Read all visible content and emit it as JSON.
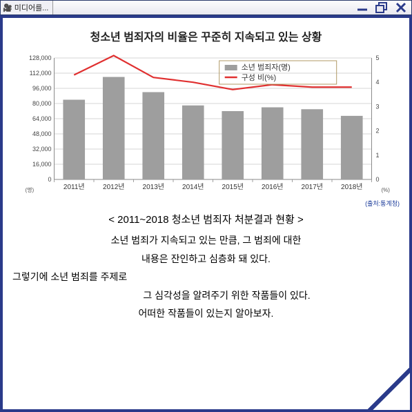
{
  "window": {
    "title": "미디어를...",
    "minimize": "—",
    "restore": "❐",
    "close": "✕"
  },
  "chart": {
    "title": "청소년 범죄자의 비율은 꾸준히 지속되고 있는 상황",
    "type": "bar+line",
    "categories": [
      "2011년",
      "2012년",
      "2013년",
      "2014년",
      "2015년",
      "2016년",
      "2017년",
      "2018년"
    ],
    "bars": {
      "label": "소년 범죄자(명)",
      "values": [
        84000,
        108000,
        92000,
        78000,
        72000,
        76000,
        74000,
        67000
      ],
      "color": "#9e9e9e"
    },
    "line": {
      "label": "구성 비(%)",
      "values": [
        4.3,
        5.1,
        4.2,
        4.0,
        3.7,
        3.9,
        3.8,
        3.8
      ],
      "color": "#e03030",
      "width": 2.2
    },
    "y_left": {
      "min": 0,
      "max": 128000,
      "step": 16000,
      "unit": "(명)",
      "ticks": [
        "0",
        "16,000",
        "32,000",
        "48,000",
        "64,000",
        "80,000",
        "96,000",
        "112,000",
        "128,000"
      ]
    },
    "y_right": {
      "min": 0,
      "max": 5,
      "step": 1,
      "unit": "(%)",
      "ticks": [
        "0",
        "1",
        "2",
        "3",
        "4",
        "5"
      ]
    },
    "legend_box_color": "#b09a66",
    "grid_color": "#c9c9c9",
    "axis_color": "#8a8a8a",
    "background": "#ffffff",
    "axis_fontsize": 9,
    "legend_fontsize": 11,
    "bar_width_ratio": 0.55,
    "source": "(출처:통계청)"
  },
  "content": {
    "subtitle": "< 2011~2018 청소년 범죄자  처분결과 현황 >",
    "line1": "소년 범죄가 지속되고 있는 만큼, 그 범죄에 대한",
    "line2": "내용은 잔인하고 심층화 돼 있다.",
    "line3": "그렇기에 소년 범죄를 주제로",
    "line4": "그 심각성을 알려주기 위한 작품들이 있다.",
    "line5": "어떠한 작품들이 있는지 알아보자."
  },
  "colors": {
    "frame": "#2a3a8a",
    "fold_fill": "#ffffff"
  }
}
